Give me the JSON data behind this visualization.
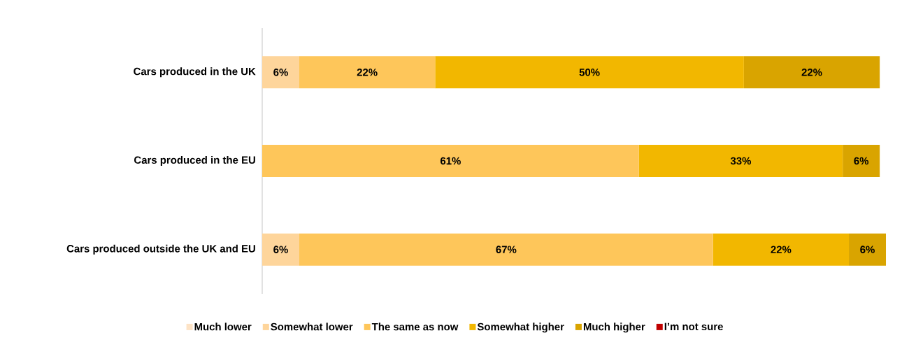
{
  "chart_data": {
    "type": "bar",
    "orientation": "horizontal",
    "stacked": true,
    "categories": [
      "Cars produced in the UK",
      "Cars produced in the EU",
      "Cars produced outside the UK and EU"
    ],
    "series": [
      {
        "name": "Much lower",
        "color": "#fde3c6",
        "values": [
          null,
          null,
          null
        ],
        "value_labels": [
          null,
          null,
          null
        ]
      },
      {
        "name": "Somewhat lower",
        "color": "#fed59b",
        "values": [
          6,
          null,
          6
        ],
        "value_labels": [
          "6%",
          null,
          "6%"
        ]
      },
      {
        "name": "The same as now",
        "color": "#fec65a",
        "values": [
          22,
          61,
          67
        ],
        "value_labels": [
          "22%",
          "61%",
          "67%"
        ]
      },
      {
        "name": "Somewhat higher",
        "color": "#f2b700",
        "values": [
          50,
          33,
          22
        ],
        "value_labels": [
          "50%",
          "33%",
          "22%"
        ]
      },
      {
        "name": "Much higher",
        "color": "#d9a400",
        "values": [
          22,
          6,
          6
        ],
        "value_labels": [
          "22%",
          "6%",
          "6%"
        ]
      },
      {
        "name": "I’m not sure",
        "color": "#c00000",
        "values": [
          null,
          null,
          null
        ],
        "value_labels": [
          null,
          null,
          null
        ]
      }
    ],
    "legend": "bottom",
    "tick_labels": "y",
    "grid": false
  }
}
